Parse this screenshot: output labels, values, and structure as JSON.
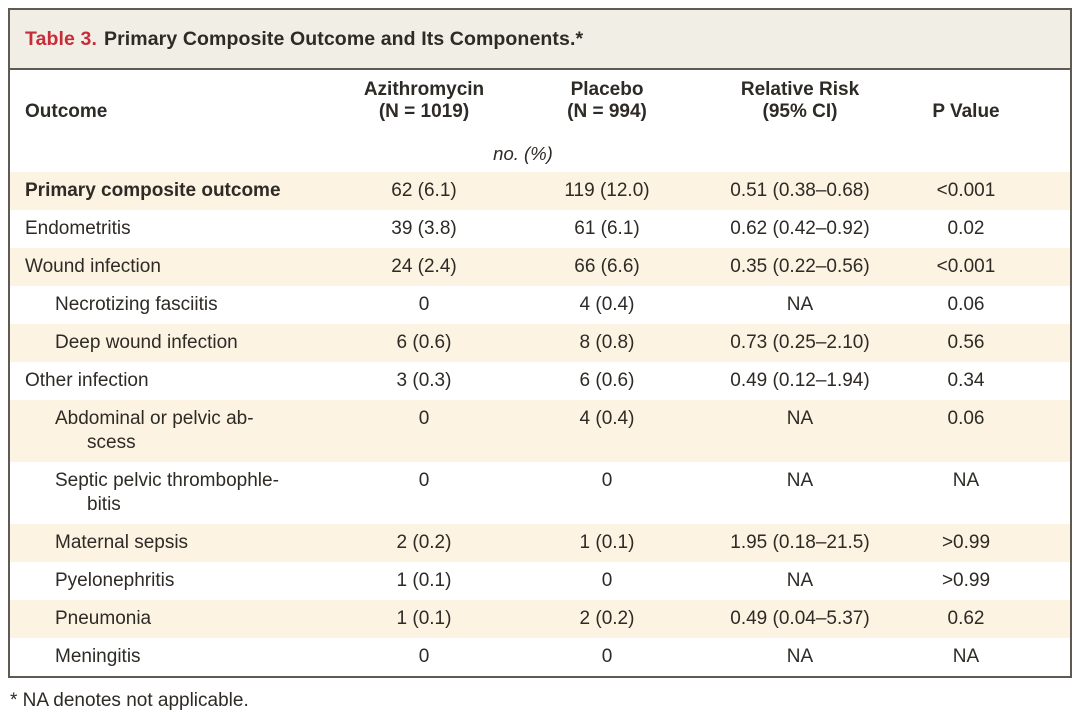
{
  "table": {
    "title_label": "Table 3.",
    "title_text": "Primary Composite Outcome and Its Components.*",
    "header": {
      "outcome": "Outcome",
      "azithromycin": [
        "Azithromycin",
        "(N = 1019)"
      ],
      "placebo": [
        "Placebo",
        "(N = 994)"
      ],
      "relative_risk": [
        "Relative Risk",
        "(95% CI)"
      ],
      "p_value": "P Value"
    },
    "units_note": "no. (%)",
    "rows": [
      {
        "label": [
          "Primary composite outcome"
        ],
        "indent": 0,
        "bold": true,
        "shaded": true,
        "azithromycin": "62 (6.1)",
        "placebo": "119 (12.0)",
        "relative_risk": "0.51 (0.38–0.68)",
        "p_value": "<0.001"
      },
      {
        "label": [
          "Endometritis"
        ],
        "indent": 0,
        "bold": false,
        "shaded": false,
        "azithromycin": "39 (3.8)",
        "placebo": "61 (6.1)",
        "relative_risk": "0.62 (0.42–0.92)",
        "p_value": "0.02"
      },
      {
        "label": [
          "Wound infection"
        ],
        "indent": 0,
        "bold": false,
        "shaded": true,
        "azithromycin": "24 (2.4)",
        "placebo": "66 (6.6)",
        "relative_risk": "0.35 (0.22–0.56)",
        "p_value": "<0.001"
      },
      {
        "label": [
          "Necrotizing fasciitis"
        ],
        "indent": 1,
        "bold": false,
        "shaded": false,
        "azithromycin": "0",
        "placebo": "4 (0.4)",
        "relative_risk": "NA",
        "p_value": "0.06"
      },
      {
        "label": [
          "Deep wound infection"
        ],
        "indent": 1,
        "bold": false,
        "shaded": true,
        "azithromycin": "6 (0.6)",
        "placebo": "8 (0.8)",
        "relative_risk": "0.73 (0.25–2.10)",
        "p_value": "0.56"
      },
      {
        "label": [
          "Other infection"
        ],
        "indent": 0,
        "bold": false,
        "shaded": false,
        "azithromycin": "3 (0.3)",
        "placebo": "6 (0.6)",
        "relative_risk": "0.49 (0.12–1.94)",
        "p_value": "0.34"
      },
      {
        "label": [
          "Abdominal or pelvic ab-",
          "scess"
        ],
        "indent": 1,
        "bold": false,
        "shaded": true,
        "azithromycin": "0",
        "placebo": "4 (0.4)",
        "relative_risk": "NA",
        "p_value": "0.06"
      },
      {
        "label": [
          "Septic pelvic thrombophle-",
          "bitis"
        ],
        "indent": 1,
        "bold": false,
        "shaded": false,
        "azithromycin": "0",
        "placebo": "0",
        "relative_risk": "NA",
        "p_value": "NA"
      },
      {
        "label": [
          "Maternal sepsis"
        ],
        "indent": 1,
        "bold": false,
        "shaded": true,
        "azithromycin": "2 (0.2)",
        "placebo": "1 (0.1)",
        "relative_risk": "1.95 (0.18–21.5)",
        "p_value": ">0.99"
      },
      {
        "label": [
          "Pyelonephritis"
        ],
        "indent": 1,
        "bold": false,
        "shaded": false,
        "azithromycin": "1 (0.1)",
        "placebo": "0",
        "relative_risk": "NA",
        "p_value": ">0.99"
      },
      {
        "label": [
          "Pneumonia"
        ],
        "indent": 1,
        "bold": false,
        "shaded": true,
        "azithromycin": "1 (0.1)",
        "placebo": "2 (0.2)",
        "relative_risk": "0.49 (0.04–5.37)",
        "p_value": "0.62"
      },
      {
        "label": [
          "Meningitis"
        ],
        "indent": 1,
        "bold": false,
        "shaded": false,
        "azithromycin": "0",
        "placebo": "0",
        "relative_risk": "NA",
        "p_value": "NA"
      }
    ],
    "footnote": "* NA denotes not applicable."
  },
  "colors": {
    "accent_red": "#c62d38",
    "row_shade": "#fcf3e2",
    "border": "#5f5a52",
    "text": "#2e2a25",
    "titlebar_bg": "#f1eee6"
  }
}
